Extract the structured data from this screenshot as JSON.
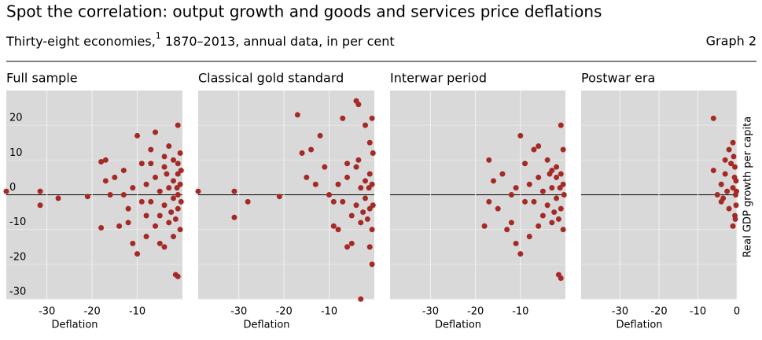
{
  "header": {
    "title": "Spot the correlation: output growth and goods and services price deflations",
    "subtitle": "Thirty-eight economies,",
    "footnote_mark": "1",
    "subtitle_rest": " 1870–2013, annual data, in per cent",
    "graph_label": "Graph 2"
  },
  "chart_data": [
    {
      "type": "scatter",
      "title": "Full sample",
      "xlabel": "Deflation",
      "color": "#a52a26",
      "ytick_labels": true,
      "xlim": [
        -39,
        0
      ],
      "ylim": [
        -30,
        30
      ],
      "xticks": [
        -30,
        -20,
        -10
      ],
      "yticks": [
        -30,
        -20,
        -10,
        0,
        10,
        20
      ],
      "x": [
        -39,
        -31.5,
        -31.5,
        -27.5,
        -21,
        -18,
        -18,
        -17,
        -17,
        -16,
        -15,
        -14,
        -13,
        -12,
        -11,
        -10,
        -10,
        -9,
        -8,
        -7,
        -6,
        -5,
        -4,
        -3,
        -1,
        -1.5,
        -1,
        -8,
        -7,
        -6,
        -5,
        -5,
        -4,
        -4,
        -3,
        -3,
        -2,
        -2,
        -2,
        -1,
        -1,
        -1,
        -0.5,
        -0.5,
        -0.5,
        -1.5,
        -2.5,
        -3.5,
        -6,
        -9,
        -11,
        -12,
        -13,
        -7,
        -8,
        -4,
        -2,
        -1,
        -0.3,
        -0.3,
        -1.2
      ],
      "y": [
        1,
        1,
        -3,
        -1,
        -0.5,
        -9.5,
        9.5,
        10,
        4,
        0,
        5,
        -9,
        7,
        -4,
        -14,
        17,
        -17,
        9,
        -12,
        13,
        18,
        -14,
        -15,
        14,
        20,
        -23,
        -23.5,
        3,
        -2,
        5,
        1,
        -6,
        8,
        -3,
        2,
        -8,
        4,
        -1,
        10,
        6,
        -4,
        0,
        3,
        -10,
        12,
        -7,
        -5,
        6,
        -9,
        -2,
        2,
        -8,
        0,
        9,
        -6,
        11,
        -12,
        9,
        -2,
        7,
        2
      ]
    },
    {
      "type": "scatter",
      "title": "Classical gold standard",
      "xlabel": "Deflation",
      "color": "#a52a26",
      "ytick_labels": false,
      "xlim": [
        -39,
        0
      ],
      "ylim": [
        -30,
        30
      ],
      "xticks": [
        -30,
        -20,
        -10
      ],
      "yticks": [
        -30,
        -20,
        -10,
        0,
        10,
        20
      ],
      "x": [
        -39,
        -31,
        -31,
        -28,
        -21,
        -17,
        -16,
        -15,
        -14,
        -13,
        -12,
        -11,
        -10,
        -9,
        -8,
        -7,
        -6,
        -5,
        -4,
        -3.5,
        -3,
        -2,
        -1,
        -0.5,
        -1,
        -0.5,
        -8,
        -7,
        -6,
        -5,
        -4,
        -4,
        -3,
        -3,
        -2,
        -2,
        -1,
        -1,
        -0.5,
        -0.5,
        -1.5,
        -2.5,
        -3.5,
        -6,
        -9,
        -1.2,
        -0.3,
        -0.3
      ],
      "y": [
        1,
        1,
        -6.5,
        -2,
        -0.5,
        23,
        12,
        5,
        13,
        3,
        17,
        8,
        0,
        -9,
        -10,
        22,
        -15,
        -14,
        27,
        26,
        -30,
        20,
        15,
        22,
        -15,
        -20,
        3,
        -2,
        5,
        -6,
        8,
        -3,
        2,
        -8,
        4,
        -1,
        6,
        -4,
        3,
        -10,
        -7,
        -5,
        10,
        9,
        -2,
        2,
        12,
        -3
      ]
    },
    {
      "type": "scatter",
      "title": "Interwar period",
      "xlabel": "Deflation",
      "color": "#a52a26",
      "ytick_labels": false,
      "xlim": [
        -39,
        0
      ],
      "ylim": [
        -30,
        30
      ],
      "xticks": [
        -30,
        -20,
        -10
      ],
      "yticks": [
        -30,
        -20,
        -10,
        0,
        10,
        20
      ],
      "x": [
        -18,
        -17,
        -17,
        -16,
        -15,
        -14,
        -13,
        -12,
        -11,
        -10,
        -10,
        -9,
        -8,
        -7,
        -6,
        -5,
        -4,
        -3,
        -2,
        -1.5,
        -1,
        -1,
        -0.5,
        -8,
        -7,
        -6,
        -5,
        -4,
        -3,
        -3,
        -2,
        -2,
        -1,
        -1,
        -0.5,
        -0.5,
        -1.5,
        -2.5,
        -3.5,
        -6,
        -9,
        -11,
        -12,
        -1.2,
        -0.3
      ],
      "y": [
        -9,
        10,
        -2,
        4,
        -4,
        6,
        -10,
        0,
        -14,
        -17,
        17,
        9,
        -12,
        13,
        14,
        -6,
        10,
        -8,
        5,
        -23,
        -24,
        20,
        13,
        3,
        -2,
        5,
        1,
        -3,
        2,
        7,
        -1,
        8,
        6,
        -4,
        3,
        -10,
        -7,
        -5,
        6,
        -9,
        -2,
        2,
        -8,
        2,
        0
      ]
    },
    {
      "type": "scatter",
      "title": "Postwar era",
      "xlabel": "Deflation",
      "ylabel": "Real GDP growth per capita",
      "color": "#a52a26",
      "ytick_labels": false,
      "xlim": [
        -40,
        0
      ],
      "ylim": [
        -30,
        30
      ],
      "xticks": [
        -30,
        -20,
        -10,
        0
      ],
      "yticks": [
        -30,
        -20,
        -10,
        0,
        10,
        20
      ],
      "x": [
        -6,
        -6,
        -5,
        -4,
        -4,
        -3,
        -3,
        -2,
        -2,
        -1,
        -1,
        -1,
        -0.5,
        -0.5,
        -0.3,
        -0.2,
        -0.2,
        -1.5,
        -2.5,
        -3.5,
        -0.8,
        -0.4,
        -0.6,
        -0.1
      ],
      "y": [
        22,
        7,
        0,
        3,
        -2,
        10,
        6,
        -4,
        13,
        15,
        -9,
        2,
        -6,
        8,
        0,
        -3,
        4,
        9,
        1,
        -1,
        11,
        -7,
        5,
        1
      ]
    }
  ]
}
